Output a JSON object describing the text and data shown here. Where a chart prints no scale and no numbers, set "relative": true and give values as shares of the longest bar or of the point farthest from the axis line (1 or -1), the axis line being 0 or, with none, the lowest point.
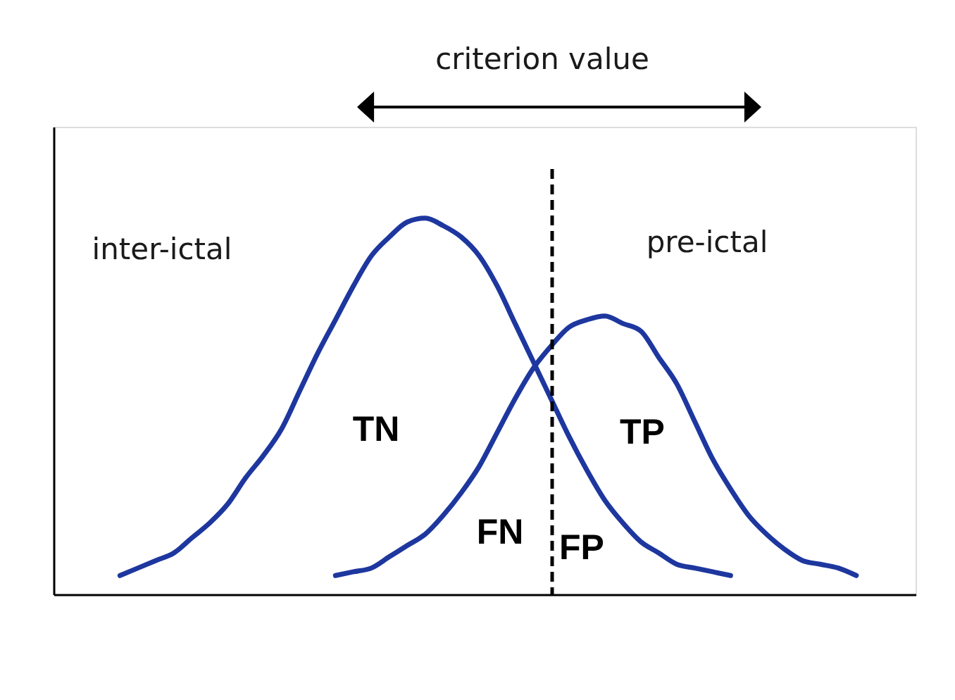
{
  "chart_data": {
    "type": "line",
    "relative": true,
    "categories": [
      null,
      null,
      null,
      null,
      null,
      null,
      null,
      null,
      null,
      null,
      null,
      null,
      null,
      null,
      null,
      null,
      null,
      null,
      null,
      null,
      null,
      null,
      null,
      null,
      null,
      null,
      null,
      null,
      null,
      null,
      null,
      null,
      null,
      null,
      null,
      null,
      null,
      null,
      null,
      null,
      null,
      null
    ],
    "series": [
      {
        "color": "#1e379f",
        "values": [
          0.05,
          0.07,
          0.09,
          0.11,
          0.15,
          0.19,
          0.24,
          0.31,
          0.37,
          0.44,
          0.54,
          0.64,
          0.73,
          0.82,
          0.9,
          0.95,
          0.99,
          1.0,
          0.98,
          0.95,
          0.9,
          0.82,
          0.72,
          0.62,
          0.52,
          0.42,
          0.33,
          0.25,
          0.19,
          0.14,
          0.11,
          0.08,
          0.07,
          0.06,
          0.05,
          null,
          null,
          null,
          null,
          null,
          null,
          null
        ]
      },
      {
        "color": "#1e379f",
        "values": [
          null,
          null,
          null,
          null,
          null,
          null,
          null,
          null,
          null,
          null,
          null,
          null,
          0.05,
          0.06,
          0.07,
          0.1,
          0.13,
          0.16,
          0.21,
          0.27,
          0.34,
          0.43,
          0.52,
          0.6,
          0.66,
          0.71,
          0.73,
          0.74,
          0.72,
          0.7,
          0.63,
          0.56,
          0.46,
          0.36,
          0.28,
          0.21,
          0.16,
          0.12,
          0.09,
          0.08,
          0.07,
          0.05
        ]
      }
    ],
    "annotations": [
      "criterion value",
      "inter-ictal",
      "pre-ictal",
      "TN",
      "TP",
      "FN",
      "FP"
    ]
  }
}
